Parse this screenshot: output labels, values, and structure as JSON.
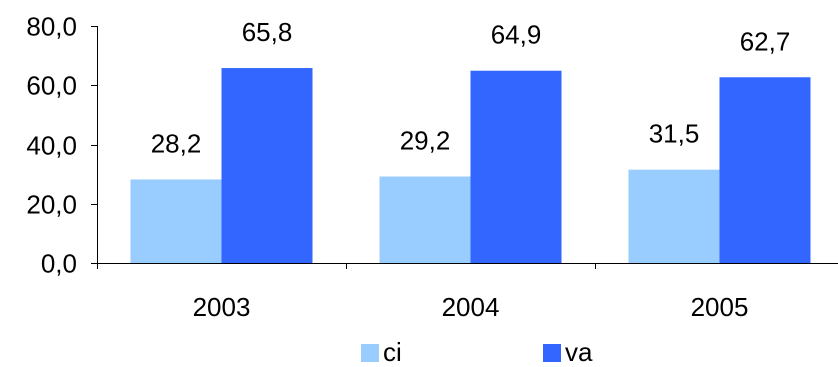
{
  "chart_data": {
    "type": "bar",
    "categories": [
      "2003",
      "2004",
      "2005"
    ],
    "series": [
      {
        "name": "ci",
        "values": [
          28.2,
          29.2,
          31.5
        ],
        "color": "#99ccff"
      },
      {
        "name": "va",
        "values": [
          65.8,
          64.9,
          62.7
        ],
        "color": "#3366ff"
      }
    ],
    "data_labels": [
      [
        "28,2",
        "29,2",
        "31,5"
      ],
      [
        "65,8",
        "64,9",
        "62,7"
      ]
    ],
    "ylim": [
      0,
      80
    ],
    "yticks": [
      0,
      20,
      40,
      60,
      80
    ],
    "ytick_labels": [
      "0,0",
      "20,0",
      "40,0",
      "60,0",
      "80,0"
    ],
    "grid": false,
    "legend_position": "bottom",
    "title": "",
    "xlabel": "",
    "ylabel": ""
  }
}
